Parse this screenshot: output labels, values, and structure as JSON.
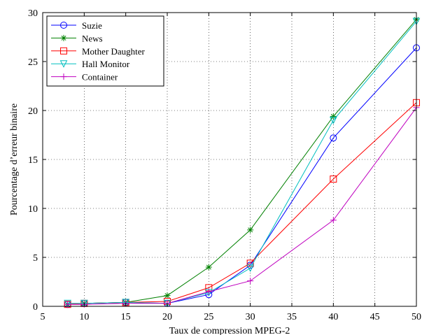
{
  "chart_data": {
    "type": "line",
    "xlabel": "Taux de compression MPEG-2",
    "ylabel": "Pourcentage d’erreur binaire",
    "xlim": [
      5,
      50
    ],
    "ylim": [
      0,
      30
    ],
    "xticks": [
      5,
      10,
      15,
      20,
      25,
      30,
      35,
      40,
      45,
      50
    ],
    "yticks": [
      0,
      5,
      10,
      15,
      20,
      25,
      30
    ],
    "grid": "dotted",
    "legend_position": "top-left",
    "x": [
      8,
      10,
      15,
      20,
      25,
      30,
      40,
      50
    ],
    "series": [
      {
        "name": "Suzie",
        "color": "#0000ff",
        "marker": "circle",
        "values": [
          0.2,
          0.3,
          0.4,
          0.3,
          1.2,
          4.2,
          17.2,
          26.4
        ]
      },
      {
        "name": "News",
        "color": "#008000",
        "marker": "asterisk",
        "values": [
          0.2,
          0.3,
          0.4,
          1.1,
          4.0,
          7.8,
          19.4,
          29.3
        ]
      },
      {
        "name": "Mother Daughter",
        "color": "#ff0000",
        "marker": "square",
        "values": [
          0.2,
          0.3,
          0.4,
          0.5,
          1.9,
          4.4,
          13.0,
          20.8
        ]
      },
      {
        "name": "Hall Monitor",
        "color": "#00bfbf",
        "marker": "triangle-down",
        "values": [
          0.3,
          0.3,
          0.4,
          0.3,
          1.4,
          3.9,
          19.0,
          29.1
        ]
      },
      {
        "name": "Container",
        "color": "#bf00bf",
        "marker": "plus",
        "values": [
          0.2,
          0.2,
          0.3,
          0.3,
          1.5,
          2.6,
          8.8,
          20.3
        ]
      }
    ]
  }
}
